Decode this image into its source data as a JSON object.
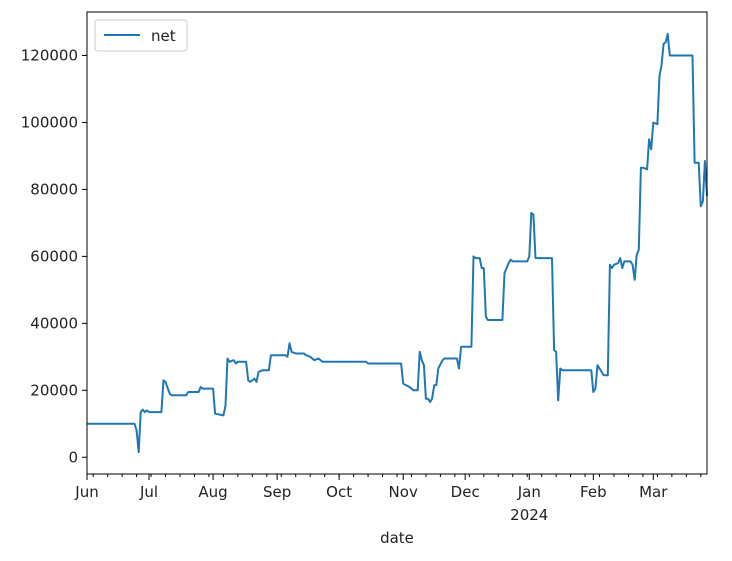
{
  "chart_data": {
    "type": "line",
    "title": "",
    "xlabel": "date",
    "ylabel": "",
    "xlim": [
      "2023-06-01",
      "2024-03-27"
    ],
    "ylim": [
      -5000,
      133000
    ],
    "grid": false,
    "legend_position": "top-left",
    "x_ticks": [
      {
        "date": "2023-06-01",
        "label": "Jun",
        "sub": ""
      },
      {
        "date": "2023-07-01",
        "label": "Jul",
        "sub": ""
      },
      {
        "date": "2023-08-01",
        "label": "Aug",
        "sub": ""
      },
      {
        "date": "2023-09-01",
        "label": "Sep",
        "sub": ""
      },
      {
        "date": "2023-10-01",
        "label": "Oct",
        "sub": ""
      },
      {
        "date": "2023-11-01",
        "label": "Nov",
        "sub": ""
      },
      {
        "date": "2023-12-01",
        "label": "Dec",
        "sub": ""
      },
      {
        "date": "2024-01-01",
        "label": "Jan",
        "sub": "2024"
      },
      {
        "date": "2024-02-01",
        "label": "Feb",
        "sub": ""
      },
      {
        "date": "2024-03-01",
        "label": "Mar",
        "sub": ""
      }
    ],
    "y_ticks": [
      0,
      20000,
      40000,
      60000,
      80000,
      100000,
      120000
    ],
    "series": [
      {
        "name": "net",
        "color": "#1f77b4",
        "points": [
          [
            "2023-06-01",
            10000
          ],
          [
            "2023-06-24",
            10000
          ],
          [
            "2023-06-25",
            8000
          ],
          [
            "2023-06-26",
            1500
          ],
          [
            "2023-06-27",
            13500
          ],
          [
            "2023-06-28",
            14200
          ],
          [
            "2023-06-29",
            13500
          ],
          [
            "2023-06-30",
            14000
          ],
          [
            "2023-07-01",
            13500
          ],
          [
            "2023-07-07",
            13500
          ],
          [
            "2023-07-08",
            23000
          ],
          [
            "2023-07-09",
            22500
          ],
          [
            "2023-07-11",
            19000
          ],
          [
            "2023-07-12",
            18500
          ],
          [
            "2023-07-19",
            18500
          ],
          [
            "2023-07-20",
            19500
          ],
          [
            "2023-07-25",
            19500
          ],
          [
            "2023-07-26",
            21000
          ],
          [
            "2023-07-27",
            20500
          ],
          [
            "2023-08-01",
            20500
          ],
          [
            "2023-08-02",
            13000
          ],
          [
            "2023-08-06",
            12500
          ],
          [
            "2023-08-07",
            15500
          ],
          [
            "2023-08-08",
            29500
          ],
          [
            "2023-08-09",
            28500
          ],
          [
            "2023-08-11",
            29000
          ],
          [
            "2023-08-12",
            28000
          ],
          [
            "2023-08-13",
            28500
          ],
          [
            "2023-08-17",
            28500
          ],
          [
            "2023-08-18",
            23000
          ],
          [
            "2023-08-19",
            22500
          ],
          [
            "2023-08-21",
            23500
          ],
          [
            "2023-08-22",
            22500
          ],
          [
            "2023-08-23",
            25500
          ],
          [
            "2023-08-25",
            26000
          ],
          [
            "2023-08-28",
            26000
          ],
          [
            "2023-08-29",
            30500
          ],
          [
            "2023-09-05",
            30500
          ],
          [
            "2023-09-06",
            30000
          ],
          [
            "2023-09-07",
            34000
          ],
          [
            "2023-09-08",
            31500
          ],
          [
            "2023-09-10",
            31000
          ],
          [
            "2023-09-14",
            31000
          ],
          [
            "2023-09-15",
            30500
          ],
          [
            "2023-09-17",
            30000
          ],
          [
            "2023-09-19",
            29000
          ],
          [
            "2023-09-21",
            29500
          ],
          [
            "2023-09-23",
            28500
          ],
          [
            "2023-10-14",
            28500
          ],
          [
            "2023-10-15",
            28000
          ],
          [
            "2023-10-31",
            28000
          ],
          [
            "2023-11-01",
            22000
          ],
          [
            "2023-11-04",
            21000
          ],
          [
            "2023-11-06",
            20000
          ],
          [
            "2023-11-08",
            20000
          ],
          [
            "2023-11-09",
            31500
          ],
          [
            "2023-11-10",
            29000
          ],
          [
            "2023-11-11",
            27500
          ],
          [
            "2023-11-12",
            17500
          ],
          [
            "2023-11-13",
            17500
          ],
          [
            "2023-11-14",
            16500
          ],
          [
            "2023-11-15",
            17500
          ],
          [
            "2023-11-16",
            21500
          ],
          [
            "2023-11-17",
            21500
          ],
          [
            "2023-11-18",
            26500
          ],
          [
            "2023-11-20",
            29000
          ],
          [
            "2023-11-21",
            29500
          ],
          [
            "2023-11-27",
            29500
          ],
          [
            "2023-11-28",
            26500
          ],
          [
            "2023-11-29",
            33000
          ],
          [
            "2023-11-30",
            33000
          ],
          [
            "2023-12-04",
            33000
          ],
          [
            "2023-12-05",
            60000
          ],
          [
            "2023-12-06",
            59500
          ],
          [
            "2023-12-08",
            59500
          ],
          [
            "2023-12-09",
            56500
          ],
          [
            "2023-12-10",
            56500
          ],
          [
            "2023-12-11",
            42000
          ],
          [
            "2023-12-12",
            41000
          ],
          [
            "2023-12-19",
            41000
          ],
          [
            "2023-12-20",
            55000
          ],
          [
            "2023-12-22",
            58000
          ],
          [
            "2023-12-23",
            59000
          ],
          [
            "2023-12-24",
            58500
          ],
          [
            "2023-12-31",
            58500
          ],
          [
            "2024-01-01",
            60000
          ],
          [
            "2024-01-02",
            73000
          ],
          [
            "2024-01-03",
            72500
          ],
          [
            "2024-01-04",
            59500
          ],
          [
            "2024-01-12",
            59500
          ],
          [
            "2024-01-13",
            32000
          ],
          [
            "2024-01-14",
            31500
          ],
          [
            "2024-01-15",
            17000
          ],
          [
            "2024-01-16",
            26500
          ],
          [
            "2024-01-17",
            26000
          ],
          [
            "2024-01-31",
            26000
          ],
          [
            "2024-02-01",
            19500
          ],
          [
            "2024-02-02",
            20500
          ],
          [
            "2024-02-03",
            27500
          ],
          [
            "2024-02-05",
            25500
          ],
          [
            "2024-02-06",
            24500
          ],
          [
            "2024-02-08",
            24500
          ],
          [
            "2024-02-09",
            57500
          ],
          [
            "2024-02-10",
            56500
          ],
          [
            "2024-02-11",
            57500
          ],
          [
            "2024-02-13",
            58000
          ],
          [
            "2024-02-14",
            59500
          ],
          [
            "2024-02-15",
            56500
          ],
          [
            "2024-02-16",
            58500
          ],
          [
            "2024-02-19",
            58500
          ],
          [
            "2024-02-20",
            57500
          ],
          [
            "2024-02-21",
            53000
          ],
          [
            "2024-02-22",
            60500
          ],
          [
            "2024-02-23",
            62000
          ],
          [
            "2024-02-24",
            86500
          ],
          [
            "2024-02-25",
            86500
          ],
          [
            "2024-02-27",
            86000
          ],
          [
            "2024-02-28",
            95000
          ],
          [
            "2024-02-29",
            92000
          ],
          [
            "2024-03-01",
            100000
          ],
          [
            "2024-03-03",
            99500
          ],
          [
            "2024-03-04",
            114000
          ],
          [
            "2024-03-05",
            117000
          ],
          [
            "2024-03-06",
            123500
          ],
          [
            "2024-03-07",
            124000
          ],
          [
            "2024-03-08",
            126500
          ],
          [
            "2024-03-09",
            120000
          ],
          [
            "2024-03-20",
            120000
          ],
          [
            "2024-03-21",
            88000
          ],
          [
            "2024-03-23",
            88000
          ],
          [
            "2024-03-24",
            75000
          ],
          [
            "2024-03-25",
            76500
          ],
          [
            "2024-03-26",
            88500
          ],
          [
            "2024-03-27",
            78000
          ]
        ]
      }
    ]
  }
}
